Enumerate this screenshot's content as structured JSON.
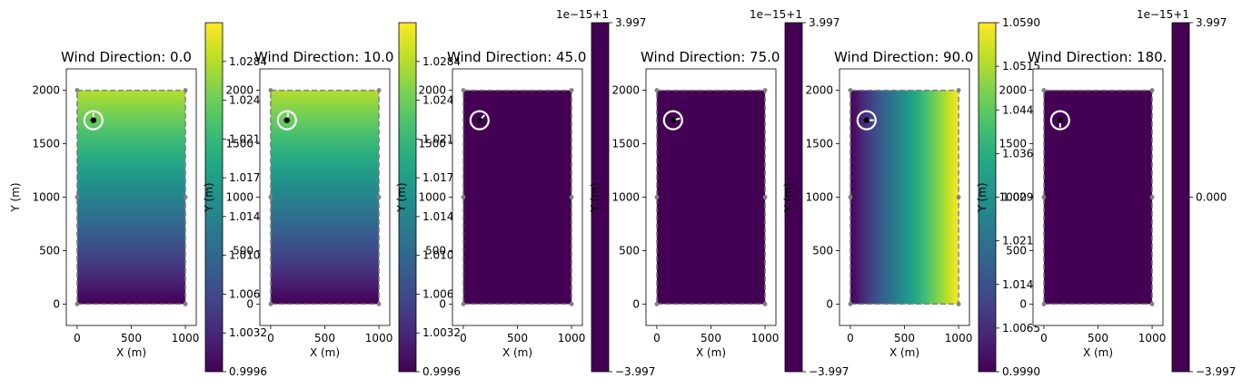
{
  "chart_data": [
    {
      "type": "heatmap",
      "title": "Wind Direction: 0.0",
      "xlabel": "X (m)",
      "ylabel": "Y (m)",
      "xlim": [
        -100,
        1100
      ],
      "ylim": [
        -200,
        2200
      ],
      "xticks": [
        0,
        500,
        1000
      ],
      "yticks": [
        0,
        500,
        1000,
        1500,
        2000
      ],
      "field": {
        "direction": "vertical",
        "min": 0.9996,
        "max": 1.0284
      },
      "colorbar": {
        "min": 0.9996,
        "max": 1.032,
        "ticks": [
          "0.9996",
          "1.0032",
          "1.0068",
          "1.0104",
          "1.0140",
          "1.0176",
          "1.0212",
          "1.0248",
          "1.0284"
        ],
        "offset": ""
      },
      "turbine": {
        "x": 150,
        "y": 1720,
        "arrow_angle": 0
      },
      "boundary": [
        [
          0,
          0
        ],
        [
          1000,
          0
        ],
        [
          1000,
          2000
        ],
        [
          0,
          2000
        ]
      ]
    },
    {
      "type": "heatmap",
      "title": "Wind Direction: 10.0",
      "xlabel": "X (m)",
      "ylabel": "Y (m)",
      "xlim": [
        -100,
        1100
      ],
      "ylim": [
        -200,
        2200
      ],
      "xticks": [
        0,
        500,
        1000
      ],
      "yticks": [
        0,
        500,
        1000,
        1500,
        2000
      ],
      "field": {
        "direction": "vertical",
        "min": 0.9996,
        "max": 1.0284
      },
      "colorbar": {
        "min": 0.9996,
        "max": 1.032,
        "ticks": [
          "0.9996",
          "1.0032",
          "1.0068",
          "1.0104",
          "1.0140",
          "1.0176",
          "1.0212",
          "1.0248",
          "1.0284"
        ],
        "offset": ""
      },
      "turbine": {
        "x": 150,
        "y": 1720,
        "arrow_angle": 10
      },
      "boundary": [
        [
          0,
          0
        ],
        [
          1000,
          0
        ],
        [
          1000,
          2000
        ],
        [
          0,
          2000
        ]
      ]
    },
    {
      "type": "heatmap",
      "title": "Wind Direction: 45.0",
      "xlabel": "X (m)",
      "ylabel": "Y (m)",
      "xlim": [
        -100,
        1100
      ],
      "ylim": [
        -200,
        2200
      ],
      "xticks": [
        0,
        500,
        1000
      ],
      "yticks": [
        0,
        500,
        1000,
        1500,
        2000
      ],
      "field": {
        "direction": "uniform",
        "min": 0,
        "max": 0
      },
      "colorbar": {
        "min": -3.997,
        "max": 3.997,
        "ticks": [
          "−3.997",
          "3.997"
        ],
        "offset": "1e−15+1"
      },
      "turbine": {
        "x": 150,
        "y": 1720,
        "arrow_angle": 45
      },
      "boundary": [
        [
          0,
          0
        ],
        [
          1000,
          0
        ],
        [
          1000,
          2000
        ],
        [
          0,
          2000
        ]
      ]
    },
    {
      "type": "heatmap",
      "title": "Wind Direction: 75.0",
      "xlabel": "X (m)",
      "ylabel": "Y (m)",
      "xlim": [
        -100,
        1100
      ],
      "ylim": [
        -200,
        2200
      ],
      "xticks": [
        0,
        500,
        1000
      ],
      "yticks": [
        0,
        500,
        1000,
        1500,
        2000
      ],
      "field": {
        "direction": "uniform",
        "min": 0,
        "max": 0
      },
      "colorbar": {
        "min": -3.997,
        "max": 3.997,
        "ticks": [
          "−3.997",
          "3.997"
        ],
        "offset": "1e−15+1"
      },
      "turbine": {
        "x": 150,
        "y": 1720,
        "arrow_angle": 75
      },
      "boundary": [
        [
          0,
          0
        ],
        [
          1000,
          0
        ],
        [
          1000,
          2000
        ],
        [
          0,
          2000
        ]
      ]
    },
    {
      "type": "heatmap",
      "title": "Wind Direction: 90.0",
      "xlabel": "X (m)",
      "ylabel": "Y (m)",
      "xlim": [
        -100,
        1100
      ],
      "ylim": [
        -200,
        2200
      ],
      "xticks": [
        0,
        500,
        1000
      ],
      "yticks": [
        0,
        500,
        1000,
        1500,
        2000
      ],
      "field": {
        "direction": "horizontal",
        "min": 0.999,
        "max": 1.059
      },
      "colorbar": {
        "min": 0.999,
        "max": 1.059,
        "ticks": [
          "0.9990",
          "1.0065",
          "1.0140",
          "1.0215",
          "1.0290",
          "1.0365",
          "1.0440",
          "1.0515",
          "1.0590"
        ],
        "offset": ""
      },
      "turbine": {
        "x": 150,
        "y": 1720,
        "arrow_angle": 90
      },
      "boundary": [
        [
          0,
          0
        ],
        [
          1000,
          0
        ],
        [
          1000,
          2000
        ],
        [
          0,
          2000
        ]
      ]
    },
    {
      "type": "heatmap",
      "title": "Wind Direction: 180.",
      "xlabel": "X (m)",
      "ylabel": "Y (m)",
      "xlim": [
        -100,
        1100
      ],
      "ylim": [
        -200,
        2200
      ],
      "xticks": [
        0,
        500,
        1000
      ],
      "yticks": [
        0,
        500,
        1000,
        1500,
        2000
      ],
      "field": {
        "direction": "uniform",
        "min": 0,
        "max": 0
      },
      "colorbar": {
        "min": -3.997,
        "max": 3.997,
        "ticks": [
          "−3.997",
          "0.000",
          "3.997"
        ],
        "offset": "1e−15+1"
      },
      "turbine": {
        "x": 150,
        "y": 1720,
        "arrow_angle": 180
      },
      "boundary": [
        [
          0,
          0
        ],
        [
          1000,
          0
        ],
        [
          1000,
          2000
        ],
        [
          0,
          2000
        ]
      ]
    }
  ]
}
